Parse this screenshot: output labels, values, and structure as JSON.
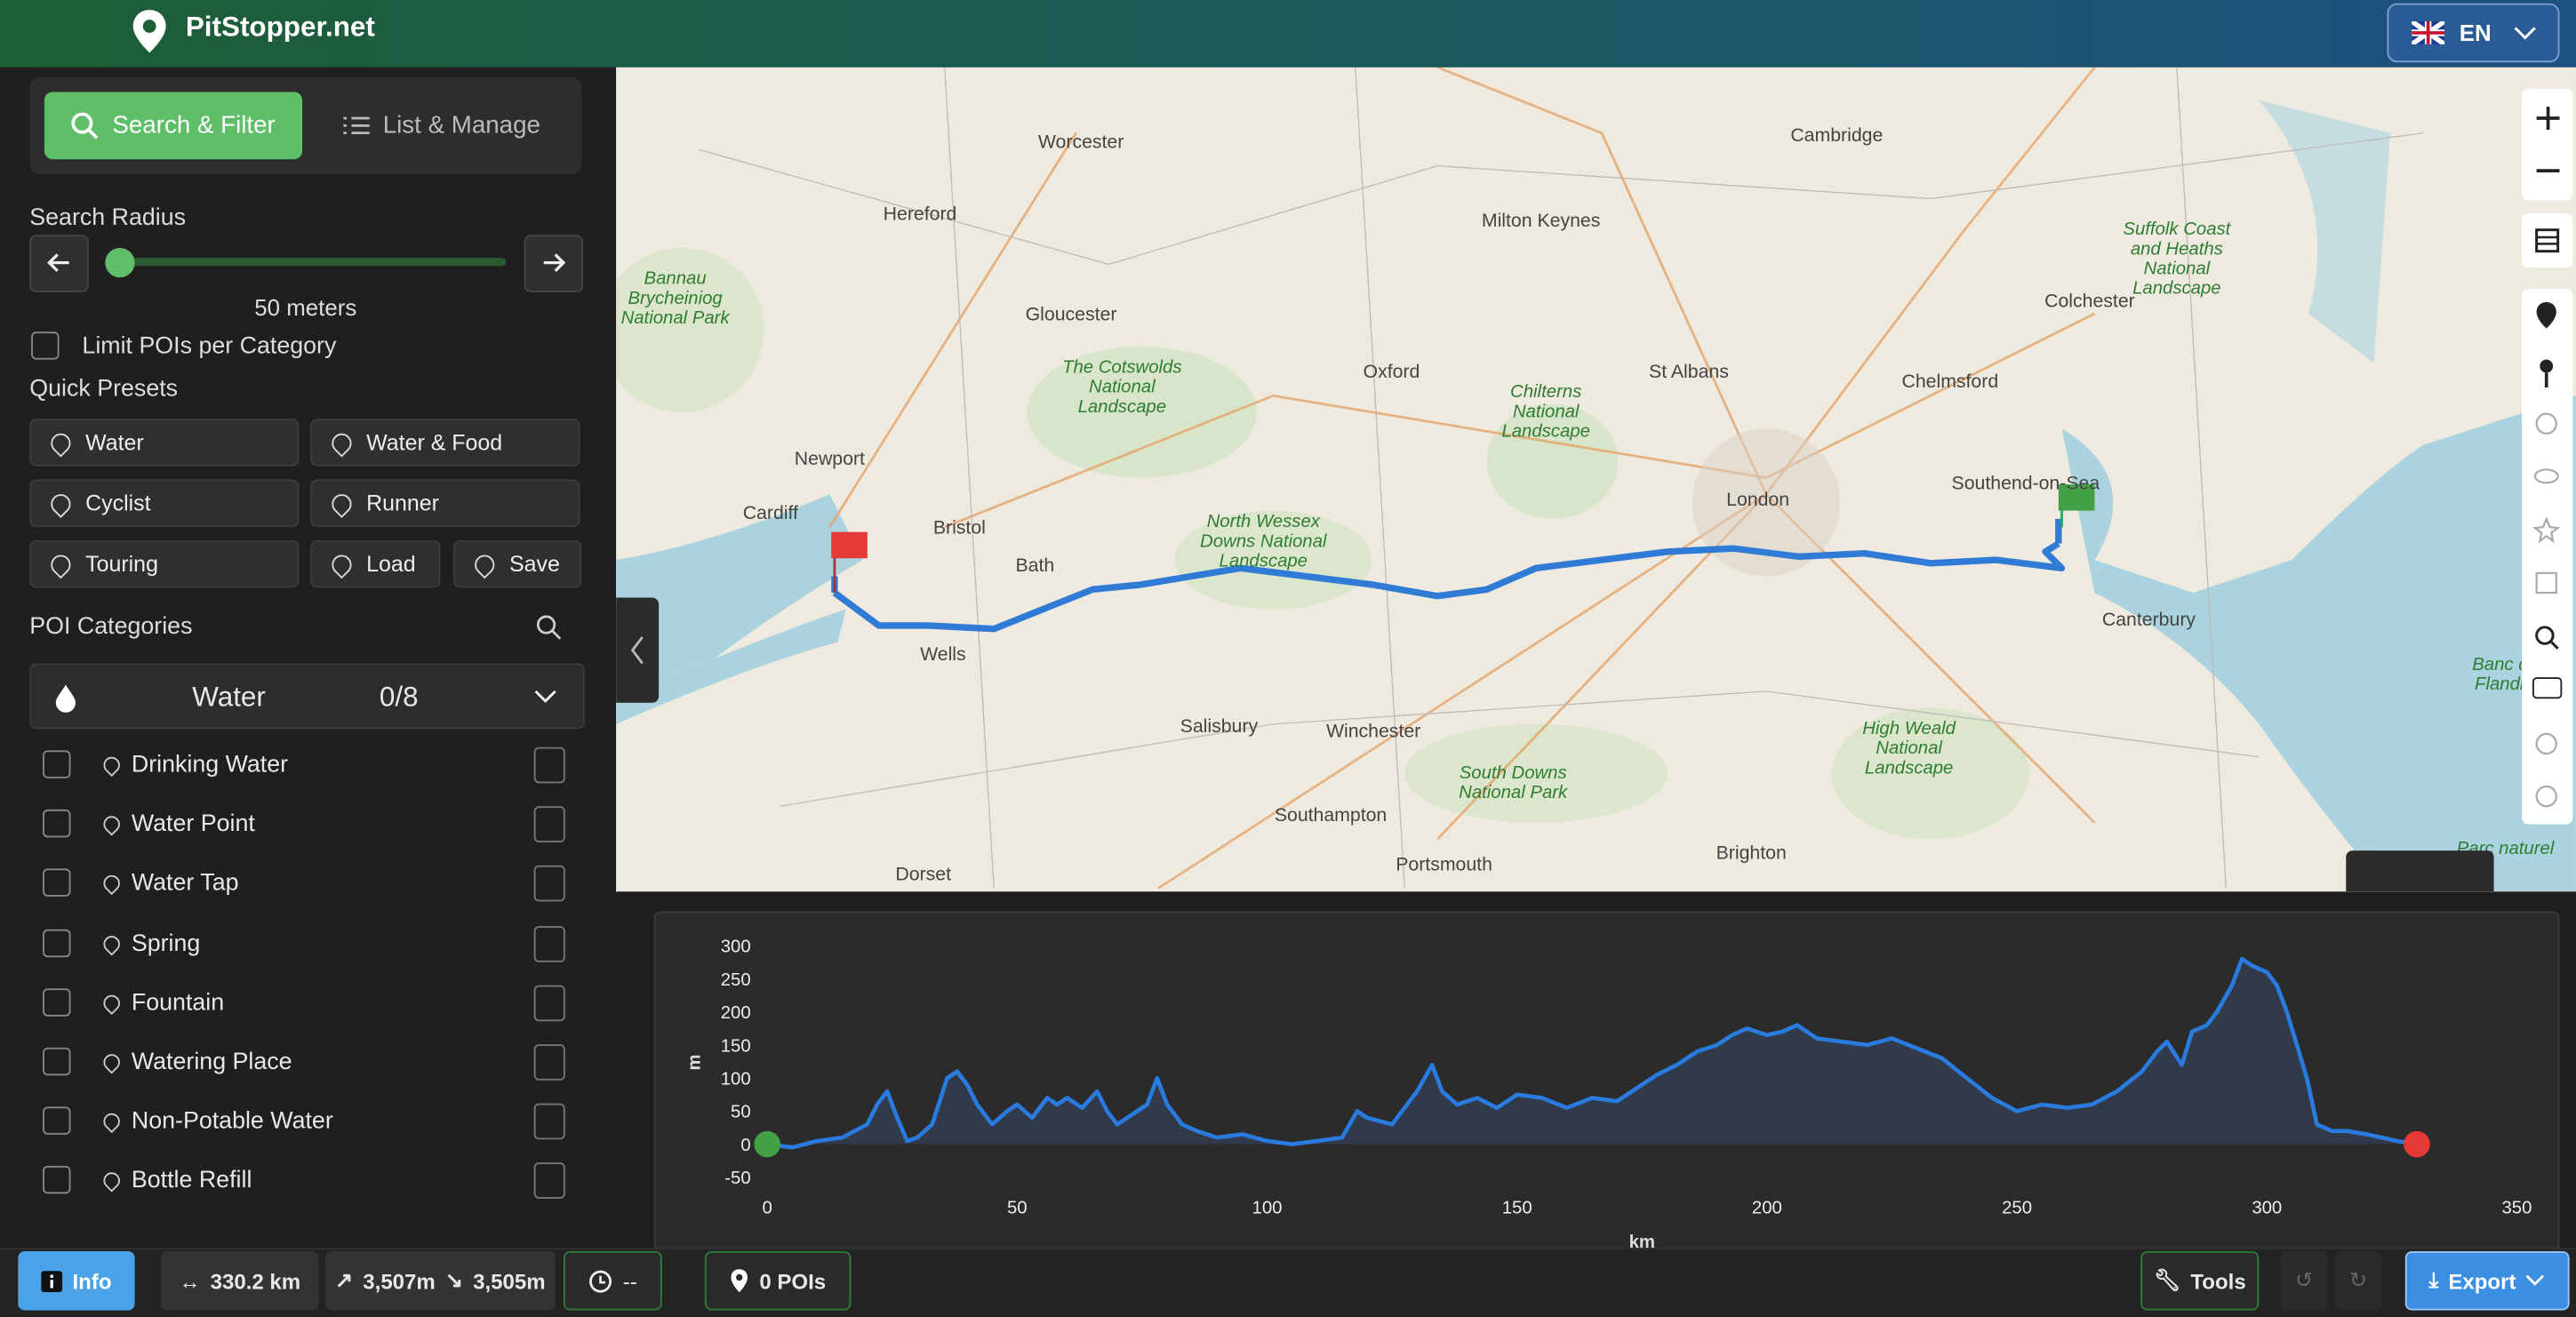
{
  "header": {
    "brand": "PitStopper.net",
    "language": "EN"
  },
  "sidebar": {
    "tabs": [
      "Search & Filter",
      "List & Manage"
    ],
    "search_radius_label": "Search Radius",
    "search_radius_value": "50 meters",
    "limit_label": "Limit POIs per Category",
    "presets_label": "Quick Presets",
    "presets": [
      "Water",
      "Water & Food",
      "Cyclist",
      "Runner",
      "Touring",
      "Load",
      "Save"
    ],
    "categories_label": "POI Categories",
    "group": {
      "name": "Water",
      "count": "0/8"
    },
    "items": [
      "Drinking Water",
      "Water Point",
      "Water Tap",
      "Spring",
      "Fountain",
      "Watering Place",
      "Non-Potable Water",
      "Bottle Refill"
    ]
  },
  "map": {
    "labels": [
      "Worcester",
      "Cambridge",
      "Hereford",
      "Milton Keynes",
      "Suffolk Coast and Heaths National Landscape",
      "Colchester",
      "Gloucester",
      "Bannau Brycheiniog National Park",
      "The Cotswolds National Landscape",
      "Oxford",
      "St Albans",
      "Chelmsford",
      "Chilterns National Landscape",
      "Newport",
      "Cardiff",
      "Bristol",
      "London",
      "Southend-on-Sea",
      "North Wessex Downs National Landscape",
      "Bath",
      "Wells",
      "Canterbury",
      "Salisbury",
      "Winchester",
      "High Weald National Landscape",
      "South Downs National Park",
      "Southampton",
      "Brighton",
      "Portsmouth",
      "Dorset",
      "Banc de Flandre",
      "Parc naturel"
    ]
  },
  "chart_data": {
    "type": "area",
    "x_label": "km",
    "y_label": "m",
    "xlim": [
      0,
      350
    ],
    "xticks": [
      0,
      50,
      100,
      150,
      200,
      250,
      300,
      350
    ],
    "ylim": [
      -50,
      300
    ],
    "yticks": [
      -50,
      0,
      50,
      100,
      150,
      200,
      250,
      300
    ],
    "color": "#2a7be0",
    "x": [
      0,
      5,
      10,
      15,
      20,
      22,
      24,
      26,
      28,
      30,
      33,
      36,
      38,
      40,
      42,
      45,
      48,
      50,
      53,
      56,
      58,
      60,
      63,
      66,
      68,
      70,
      73,
      76,
      78,
      80,
      83,
      86,
      90,
      95,
      100,
      105,
      110,
      115,
      118,
      120,
      125,
      128,
      130,
      133,
      135,
      138,
      142,
      146,
      150,
      155,
      160,
      165,
      170,
      175,
      178,
      182,
      186,
      190,
      193,
      196,
      200,
      203,
      206,
      210,
      215,
      220,
      225,
      230,
      235,
      240,
      245,
      250,
      255,
      260,
      265,
      270,
      275,
      278,
      280,
      283,
      285,
      288,
      290,
      293,
      295,
      297,
      300,
      302,
      304,
      306,
      308,
      310,
      313,
      316,
      320,
      323,
      326,
      330
    ],
    "values": [
      0,
      -5,
      5,
      10,
      30,
      60,
      80,
      40,
      5,
      10,
      30,
      100,
      110,
      90,
      60,
      30,
      50,
      60,
      40,
      70,
      60,
      70,
      55,
      80,
      50,
      30,
      45,
      60,
      100,
      60,
      30,
      20,
      10,
      15,
      5,
      0,
      5,
      10,
      50,
      40,
      30,
      60,
      80,
      120,
      80,
      60,
      70,
      55,
      75,
      70,
      55,
      70,
      65,
      90,
      105,
      120,
      140,
      150,
      165,
      175,
      165,
      170,
      180,
      160,
      155,
      150,
      160,
      145,
      130,
      100,
      70,
      50,
      60,
      55,
      60,
      80,
      110,
      140,
      155,
      120,
      170,
      180,
      200,
      240,
      280,
      270,
      260,
      240,
      200,
      150,
      100,
      30,
      20,
      20,
      15,
      10,
      5,
      0
    ]
  },
  "footer": {
    "info": "Info",
    "distance": "330.2 km",
    "ascent": "3,507m",
    "descent": "3,505m",
    "time": "--",
    "pois": "0 POIs",
    "tools": "Tools",
    "export": "Export"
  }
}
